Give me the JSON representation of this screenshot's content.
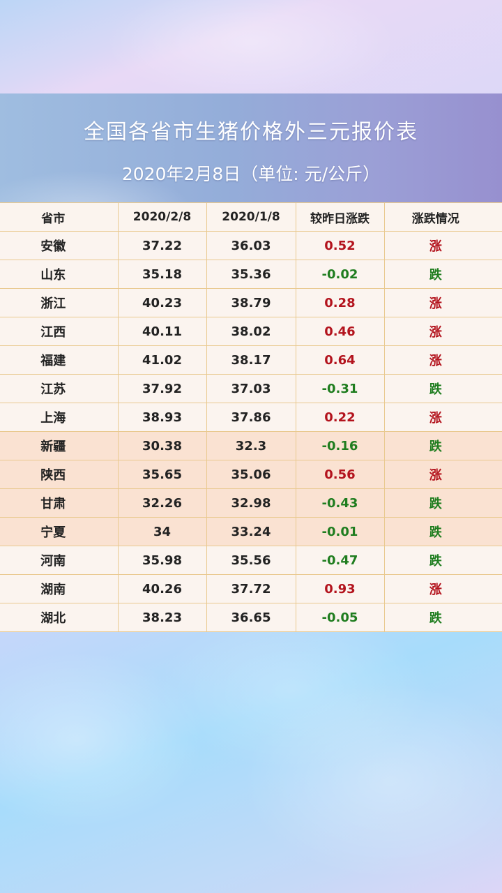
{
  "header": {
    "title": "全国各省市生猪价格外三元报价表",
    "subtitle": "2020年2月8日（单位: 元/公斤）"
  },
  "table": {
    "columns": [
      "省市",
      "2020/2/8",
      "2020/1/8",
      "较昨日涨跌",
      "涨跌情况"
    ],
    "rows": [
      {
        "province": "安徽",
        "price_now": "37.22",
        "price_prev": "36.03",
        "change": "0.52",
        "status": "涨",
        "trend": "up",
        "highlight": false
      },
      {
        "province": "山东",
        "price_now": "35.18",
        "price_prev": "35.36",
        "change": "-0.02",
        "status": "跌",
        "trend": "down",
        "highlight": false
      },
      {
        "province": "浙江",
        "price_now": "40.23",
        "price_prev": "38.79",
        "change": "0.28",
        "status": "涨",
        "trend": "up",
        "highlight": false
      },
      {
        "province": "江西",
        "price_now": "40.11",
        "price_prev": "38.02",
        "change": "0.46",
        "status": "涨",
        "trend": "up",
        "highlight": false
      },
      {
        "province": "福建",
        "price_now": "41.02",
        "price_prev": "38.17",
        "change": "0.64",
        "status": "涨",
        "trend": "up",
        "highlight": false
      },
      {
        "province": "江苏",
        "price_now": "37.92",
        "price_prev": "37.03",
        "change": "-0.31",
        "status": "跌",
        "trend": "down",
        "highlight": false
      },
      {
        "province": "上海",
        "price_now": "38.93",
        "price_prev": "37.86",
        "change": "0.22",
        "status": "涨",
        "trend": "up",
        "highlight": false
      },
      {
        "province": "新疆",
        "price_now": "30.38",
        "price_prev": "32.3",
        "change": "-0.16",
        "status": "跌",
        "trend": "down",
        "highlight": true
      },
      {
        "province": "陕西",
        "price_now": "35.65",
        "price_prev": "35.06",
        "change": "0.56",
        "status": "涨",
        "trend": "up",
        "highlight": true
      },
      {
        "province": "甘肃",
        "price_now": "32.26",
        "price_prev": "32.98",
        "change": "-0.43",
        "status": "跌",
        "trend": "down",
        "highlight": true
      },
      {
        "province": "宁夏",
        "price_now": "34",
        "price_prev": "33.24",
        "change": "-0.01",
        "status": "跌",
        "trend": "down",
        "highlight": true
      },
      {
        "province": "河南",
        "price_now": "35.98",
        "price_prev": "35.56",
        "change": "-0.47",
        "status": "跌",
        "trend": "down",
        "highlight": false
      },
      {
        "province": "湖南",
        "price_now": "40.26",
        "price_prev": "37.72",
        "change": "0.93",
        "status": "涨",
        "trend": "up",
        "highlight": false
      },
      {
        "province": "湖北",
        "price_now": "38.23",
        "price_prev": "36.65",
        "change": "-0.05",
        "status": "跌",
        "trend": "down",
        "highlight": false
      }
    ]
  },
  "colors": {
    "up": "#b3131d",
    "down": "#1f7d1f",
    "highlight_row": "#fae2d2",
    "normal_row": "#fbf4ef",
    "grid": "#e9c98f"
  }
}
